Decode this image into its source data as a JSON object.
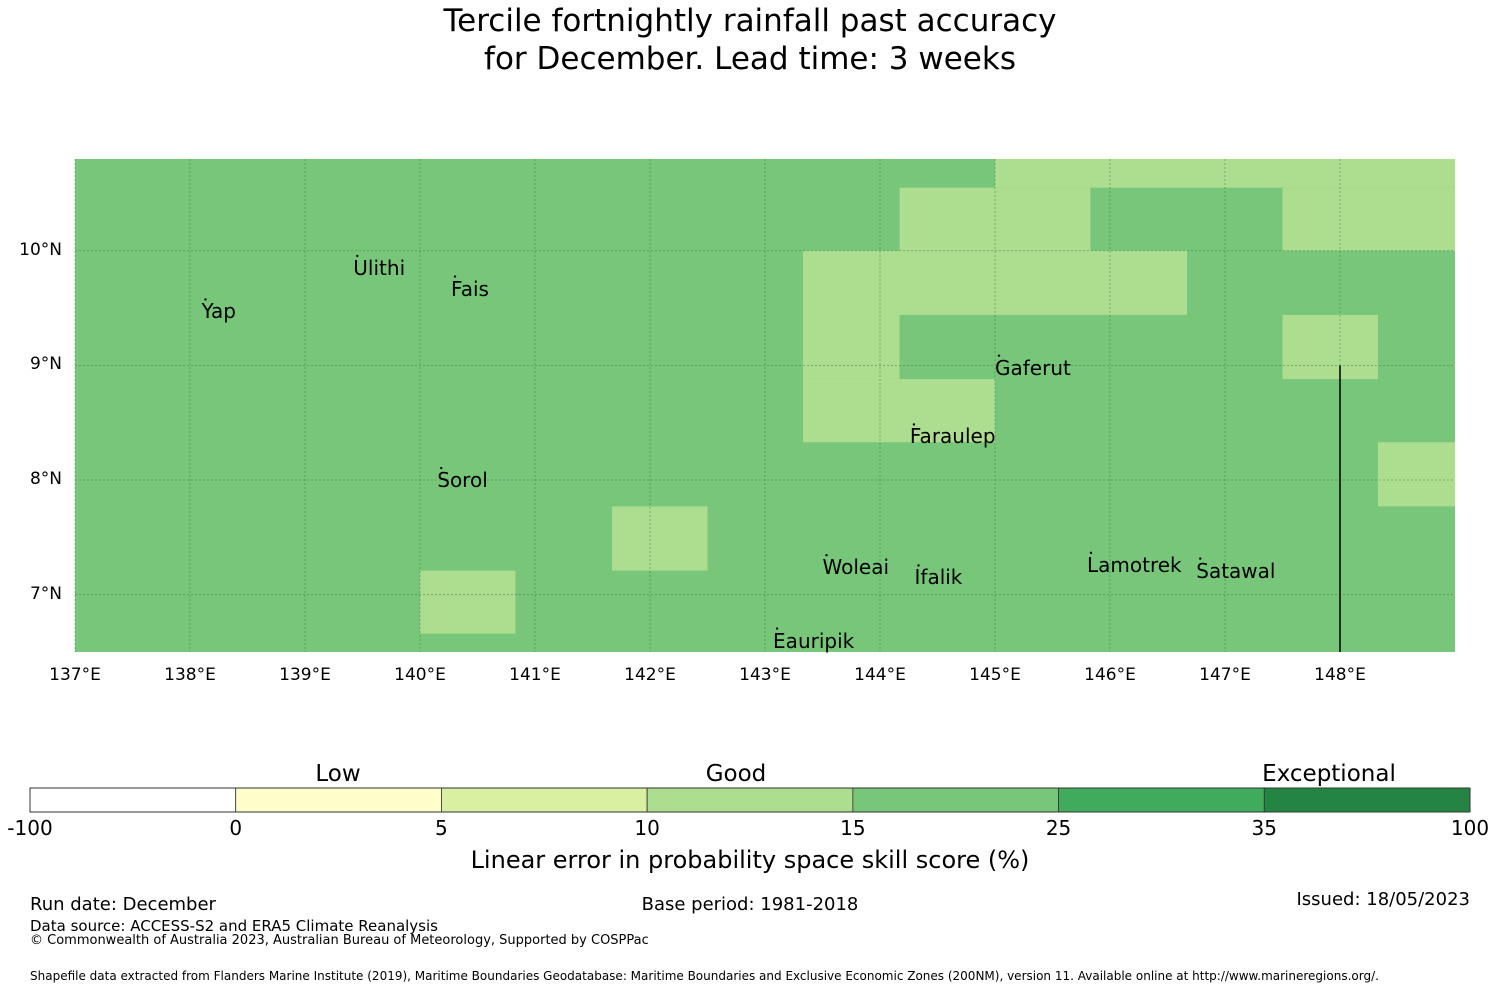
{
  "title": {
    "line1": "Tercile fortnightly rainfall past accuracy",
    "line2": "for December. Lead time: 3 weeks"
  },
  "map": {
    "extent": {
      "lon_min": 137.0,
      "lon_max": 149.0,
      "lat_min": 6.5,
      "lat_max": 10.8
    },
    "cell_size_deg": 0.833,
    "base_fill": "#78c679",
    "highlight_fill": "#addd8e",
    "gridline_color": "#3c783c",
    "lat_ticks": [
      {
        "value": 10,
        "label": "10°N"
      },
      {
        "value": 9,
        "label": "9°N"
      },
      {
        "value": 8,
        "label": "8°N"
      },
      {
        "value": 7,
        "label": "7°N"
      }
    ],
    "lon_ticks": [
      {
        "value": 137,
        "label": "137°E"
      },
      {
        "value": 138,
        "label": "138°E"
      },
      {
        "value": 139,
        "label": "139°E"
      },
      {
        "value": 140,
        "label": "140°E"
      },
      {
        "value": 141,
        "label": "141°E"
      },
      {
        "value": 142,
        "label": "142°E"
      },
      {
        "value": 143,
        "label": "143°E"
      },
      {
        "value": 144,
        "label": "144°E"
      },
      {
        "value": 145,
        "label": "145°E"
      },
      {
        "value": 146,
        "label": "146°E"
      },
      {
        "value": 147,
        "label": "147°E"
      },
      {
        "value": 148,
        "label": "148°E"
      }
    ],
    "cells_10_to_15": [
      {
        "lon": [
          145.0,
          149.0
        ],
        "lat": [
          10.55,
          10.8
        ]
      },
      {
        "lon": [
          144.17,
          145.83
        ],
        "lat": [
          10.0,
          10.55
        ]
      },
      {
        "lon": [
          147.5,
          149.0
        ],
        "lat": [
          10.0,
          10.55
        ]
      },
      {
        "lon": [
          143.33,
          146.67
        ],
        "lat": [
          9.44,
          10.0
        ]
      },
      {
        "lon": [
          143.33,
          144.17
        ],
        "lat": [
          8.88,
          9.44
        ]
      },
      {
        "lon": [
          147.5,
          148.33
        ],
        "lat": [
          8.88,
          9.44
        ]
      },
      {
        "lon": [
          143.33,
          145.0
        ],
        "lat": [
          8.33,
          8.88
        ]
      },
      {
        "lon": [
          148.33,
          149.0
        ],
        "lat": [
          7.77,
          8.33
        ]
      },
      {
        "lon": [
          141.67,
          142.5
        ],
        "lat": [
          7.21,
          7.77
        ]
      },
      {
        "lon": [
          140.0,
          140.83
        ],
        "lat": [
          6.66,
          7.21
        ]
      }
    ],
    "boundary_line": {
      "lon": 148.0,
      "lat": [
        6.5,
        9.0
      ]
    },
    "places": [
      {
        "name": "Ulithi",
        "lon": 139.42,
        "lat": 9.85
      },
      {
        "name": "Fais",
        "lon": 140.27,
        "lat": 9.67
      },
      {
        "name": "Yap",
        "lon": 138.1,
        "lat": 9.47
      },
      {
        "name": "Gaferut",
        "lon": 145.0,
        "lat": 8.98
      },
      {
        "name": "Faraulep",
        "lon": 144.26,
        "lat": 8.38
      },
      {
        "name": "Sorol",
        "lon": 140.15,
        "lat": 8.0
      },
      {
        "name": "Woleai",
        "lon": 143.5,
        "lat": 7.24
      },
      {
        "name": "Ifalik",
        "lon": 144.3,
        "lat": 7.15
      },
      {
        "name": "Lamotrek",
        "lon": 145.8,
        "lat": 7.26
      },
      {
        "name": "Satawal",
        "lon": 146.75,
        "lat": 7.21
      },
      {
        "name": "Eauripik",
        "lon": 143.07,
        "lat": 6.6
      }
    ]
  },
  "colorbar": {
    "bins": [
      {
        "color": "#ffffff"
      },
      {
        "color": "#ffffcc"
      },
      {
        "color": "#d9f0a3"
      },
      {
        "color": "#addd8e"
      },
      {
        "color": "#78c679"
      },
      {
        "color": "#41ab5d"
      },
      {
        "color": "#238443"
      }
    ],
    "tick_labels": [
      "-100",
      "0",
      "5",
      "10",
      "15",
      "25",
      "35",
      "100"
    ],
    "categories": [
      "Low",
      "Good",
      "Exceptional"
    ],
    "label": "Linear error in probability space skill score (%)"
  },
  "footer": {
    "run_date": "Run date: December",
    "base_period": "Base period: 1981-2018",
    "issued": "Issued: 18/05/2023",
    "data_source": "Data source: ACCESS-S2 and ERA5 Climate Reanalysis",
    "copyright": "© Commonwealth of Australia 2023, Australian Bureau of Meteorology, Supported by COSPPac",
    "shapefile": "Shapefile data extracted from Flanders Marine Institute (2019), Maritime Boundaries Geodatabase: Maritime Boundaries and Exclusive Economic Zones (200NM), version 11. Available online at http://www.marineregions.org/."
  }
}
